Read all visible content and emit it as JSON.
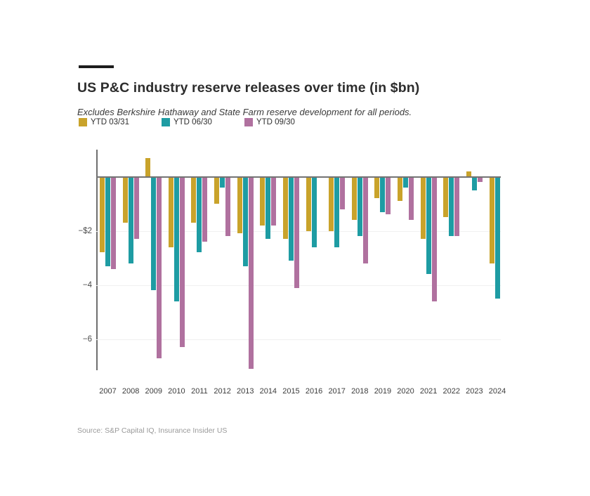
{
  "header": {
    "title": "US P&C industry reserve releases over time (in $bn)",
    "subtitle": "Excludes Berkshire Hathaway and State Farm reserve development for all periods."
  },
  "legend": [
    {
      "label": "YTD 03/31",
      "color": "#C9A32B"
    },
    {
      "label": "YTD 06/30",
      "color": "#1E9CA3"
    },
    {
      "label": "YTD 09/30",
      "color": "#B0719F"
    }
  ],
  "source_note": "Source: S&P Capital IQ, Insurance Insider US",
  "chart_data": {
    "type": "bar",
    "title": "US P&C industry reserve releases over time (in $bn)",
    "subtitle": "Excludes Berkshire Hathaway and State Farm reserve development for all periods.",
    "unit": "$bn",
    "categories": [
      "2007",
      "2008",
      "2009",
      "2010",
      "2011",
      "2012",
      "2013",
      "2014",
      "2015",
      "2016",
      "2017",
      "2018",
      "2019",
      "2020",
      "2021",
      "2022",
      "2023",
      "2024"
    ],
    "series": [
      {
        "name": "YTD 03/31",
        "color": "#C9A32B",
        "values": [
          -2.8,
          -1.7,
          0.7,
          -2.6,
          -1.7,
          -1.0,
          -2.1,
          -1.8,
          -2.3,
          -2.0,
          -2.0,
          -1.6,
          -0.8,
          -0.9,
          -2.3,
          -1.5,
          0.2,
          -3.2
        ]
      },
      {
        "name": "YTD 06/30",
        "color": "#1E9CA3",
        "values": [
          -3.3,
          -3.2,
          -4.2,
          -4.6,
          -2.8,
          -0.4,
          -3.3,
          -2.3,
          -3.1,
          -2.6,
          -2.6,
          -2.2,
          -1.3,
          -0.4,
          -3.6,
          -2.2,
          -0.5,
          -4.5
        ]
      },
      {
        "name": "YTD 09/30",
        "color": "#B0719F",
        "values": [
          -3.4,
          -2.3,
          -6.7,
          -6.3,
          -2.4,
          -2.2,
          -7.1,
          -1.8,
          -4.1,
          null,
          -1.2,
          -3.2,
          -1.4,
          -1.6,
          -4.6,
          -2.2,
          -0.2,
          null
        ]
      }
    ],
    "yticks": [
      {
        "value": -2,
        "label": "−$2"
      },
      {
        "value": -4,
        "label": "−4"
      },
      {
        "value": -6,
        "label": "−6"
      }
    ],
    "ylim": [
      1.0,
      -7.2
    ],
    "grid": true,
    "legend_position": "top-left",
    "zero_baseline": true
  }
}
